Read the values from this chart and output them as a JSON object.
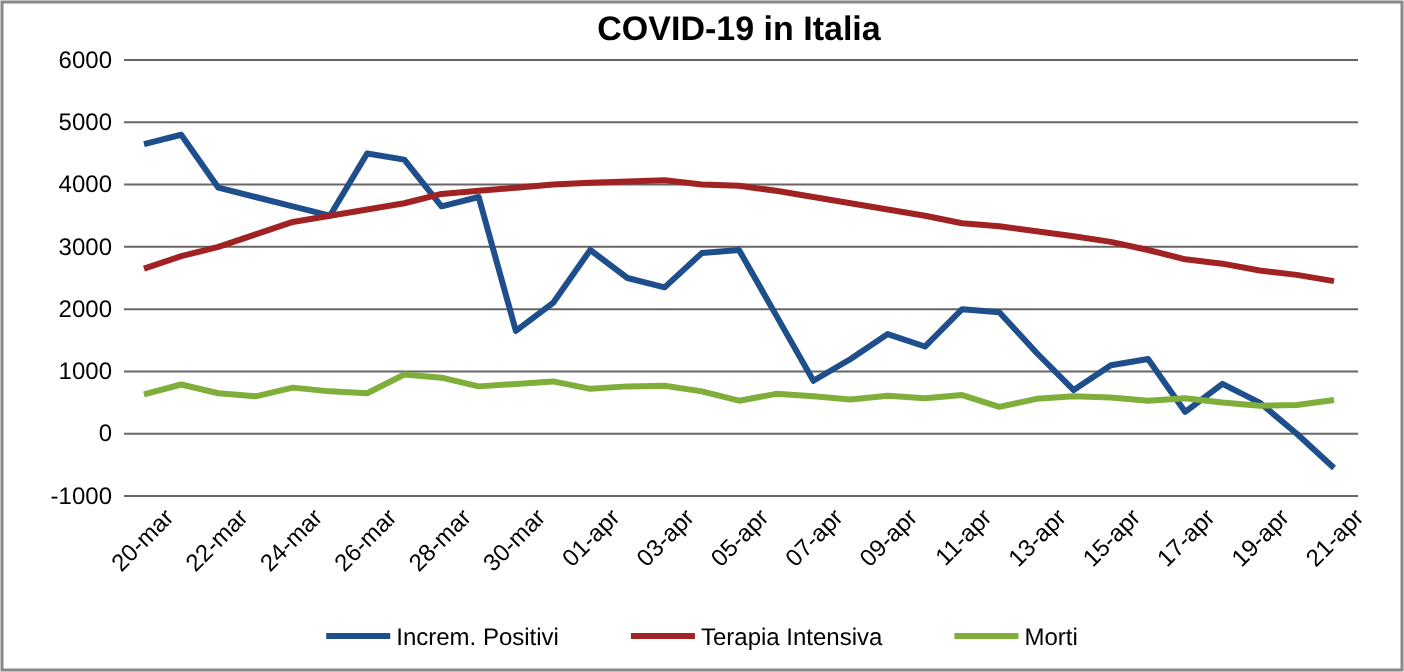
{
  "chart_data": {
    "type": "line",
    "title": "COVID-19 in Italia",
    "categories": [
      "20-mar",
      null,
      "22-mar",
      null,
      "24-mar",
      null,
      "26-mar",
      null,
      "28-mar",
      null,
      "30-mar",
      null,
      "01-apr",
      null,
      "03-apr",
      null,
      "05-apr",
      null,
      "07-apr",
      null,
      "09-apr",
      null,
      "11-apr",
      null,
      "13-apr",
      null,
      "15-apr",
      null,
      "17-apr",
      null,
      "19-apr",
      null,
      "21-apr"
    ],
    "series": [
      {
        "name": "Increm. Positivi",
        "color": "#1f4e8c",
        "values": [
          4650,
          4800,
          3950,
          3800,
          3650,
          3500,
          4500,
          4400,
          3650,
          3800,
          1650,
          2100,
          2950,
          2500,
          2350,
          2900,
          2950,
          1900,
          850,
          1200,
          1600,
          1400,
          2000,
          1950,
          1300,
          700,
          1100,
          1200,
          350,
          800,
          500,
          0,
          -550
        ]
      },
      {
        "name": "Terapia Intensiva",
        "color": "#a02222",
        "values": [
          2650,
          2850,
          3000,
          3200,
          3400,
          3500,
          3600,
          3700,
          3850,
          3900,
          3950,
          4000,
          4030,
          4050,
          4070,
          4000,
          3980,
          3900,
          3800,
          3700,
          3600,
          3500,
          3380,
          3330,
          3250,
          3170,
          3080,
          2950,
          2800,
          2730,
          2620,
          2550,
          2450
        ]
      },
      {
        "name": "Morti",
        "color": "#7fae3a",
        "values": [
          630,
          790,
          650,
          600,
          740,
          680,
          650,
          950,
          900,
          760,
          800,
          840,
          720,
          760,
          770,
          680,
          530,
          640,
          600,
          550,
          610,
          570,
          620,
          430,
          560,
          600,
          580,
          530,
          570,
          500,
          450,
          460,
          540
        ]
      }
    ],
    "ylim": [
      -1000,
      6000
    ],
    "yticks": [
      -1000,
      0,
      1000,
      2000,
      3000,
      4000,
      5000,
      6000
    ],
    "grid": "y",
    "legend": "bottom",
    "marker": "none",
    "line_style": "solid"
  }
}
